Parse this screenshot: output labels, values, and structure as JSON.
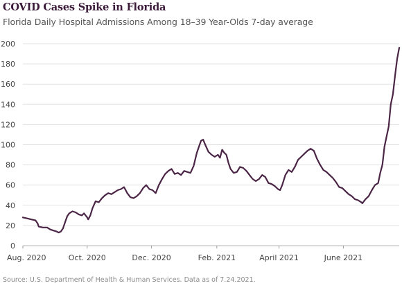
{
  "chart_data": {
    "type": "line",
    "title": "COVID Cases Spike in Florida",
    "subtitle": "Florida Daily Hospital Admissions Among 18–39 Year-Olds 7-day average",
    "source": "Source: U.S. Department of Health & Human Services. Data as of 7.24.2021.",
    "xlabel": "",
    "ylabel": "",
    "ylim": [
      0,
      200
    ],
    "yticks": [
      0,
      20,
      40,
      60,
      80,
      100,
      120,
      140,
      160,
      180,
      200
    ],
    "xlim": [
      "2020-08-01",
      "2021-07-24"
    ],
    "xticks": [
      {
        "date": "2020-08-01",
        "label": "Aug. 2020"
      },
      {
        "date": "2020-10-01",
        "label": "Oct. 2020"
      },
      {
        "date": "2020-12-01",
        "label": "Dec. 2020"
      },
      {
        "date": "2021-02-01",
        "label": "Feb. 2021"
      },
      {
        "date": "2021-04-01",
        "label": "April 2021"
      },
      {
        "date": "2021-06-01",
        "label": "June 2021"
      }
    ],
    "grid": "horizontal",
    "line_color": "#4a2545",
    "series": [
      {
        "name": "",
        "points": [
          [
            "2020-08-01",
            28
          ],
          [
            "2020-08-05",
            27
          ],
          [
            "2020-08-09",
            26
          ],
          [
            "2020-08-13",
            25
          ],
          [
            "2020-08-15",
            22
          ],
          [
            "2020-08-16",
            19
          ],
          [
            "2020-08-20",
            18
          ],
          [
            "2020-08-24",
            18
          ],
          [
            "2020-08-27",
            16
          ],
          [
            "2020-08-30",
            15
          ],
          [
            "2020-09-02",
            14
          ],
          [
            "2020-09-04",
            13
          ],
          [
            "2020-09-06",
            14
          ],
          [
            "2020-09-08",
            17
          ],
          [
            "2020-09-10",
            23
          ],
          [
            "2020-09-12",
            29
          ],
          [
            "2020-09-14",
            32
          ],
          [
            "2020-09-17",
            34
          ],
          [
            "2020-09-20",
            33
          ],
          [
            "2020-09-23",
            31
          ],
          [
            "2020-09-26",
            30
          ],
          [
            "2020-09-28",
            32
          ],
          [
            "2020-10-01",
            28
          ],
          [
            "2020-10-02",
            26
          ],
          [
            "2020-10-04",
            30
          ],
          [
            "2020-10-06",
            37
          ],
          [
            "2020-10-09",
            44
          ],
          [
            "2020-10-12",
            43
          ],
          [
            "2020-10-15",
            47
          ],
          [
            "2020-10-18",
            50
          ],
          [
            "2020-10-21",
            52
          ],
          [
            "2020-10-24",
            51
          ],
          [
            "2020-10-27",
            53
          ],
          [
            "2020-10-30",
            55
          ],
          [
            "2020-11-02",
            56
          ],
          [
            "2020-11-05",
            58
          ],
          [
            "2020-11-08",
            52
          ],
          [
            "2020-11-11",
            48
          ],
          [
            "2020-11-14",
            47
          ],
          [
            "2020-11-17",
            49
          ],
          [
            "2020-11-20",
            52
          ],
          [
            "2020-11-23",
            57
          ],
          [
            "2020-11-26",
            60
          ],
          [
            "2020-11-29",
            56
          ],
          [
            "2020-12-02",
            55
          ],
          [
            "2020-12-05",
            52
          ],
          [
            "2020-12-08",
            60
          ],
          [
            "2020-12-11",
            66
          ],
          [
            "2020-12-14",
            71
          ],
          [
            "2020-12-17",
            74
          ],
          [
            "2020-12-20",
            76
          ],
          [
            "2020-12-23",
            71
          ],
          [
            "2020-12-26",
            72
          ],
          [
            "2020-12-29",
            70
          ],
          [
            "2021-01-01",
            74
          ],
          [
            "2021-01-04",
            73
          ],
          [
            "2021-01-07",
            72
          ],
          [
            "2021-01-10",
            79
          ],
          [
            "2021-01-13",
            92
          ],
          [
            "2021-01-15",
            98
          ],
          [
            "2021-01-17",
            104
          ],
          [
            "2021-01-19",
            105
          ],
          [
            "2021-01-21",
            100
          ],
          [
            "2021-01-24",
            93
          ],
          [
            "2021-01-27",
            90
          ],
          [
            "2021-01-30",
            88
          ],
          [
            "2021-02-02",
            90
          ],
          [
            "2021-02-04",
            87
          ],
          [
            "2021-02-06",
            95
          ],
          [
            "2021-02-08",
            92
          ],
          [
            "2021-02-10",
            90
          ],
          [
            "2021-02-12",
            82
          ],
          [
            "2021-02-14",
            76
          ],
          [
            "2021-02-17",
            72
          ],
          [
            "2021-02-20",
            73
          ],
          [
            "2021-02-23",
            78
          ],
          [
            "2021-02-26",
            77
          ],
          [
            "2021-03-01",
            74
          ],
          [
            "2021-03-04",
            70
          ],
          [
            "2021-03-07",
            66
          ],
          [
            "2021-03-10",
            64
          ],
          [
            "2021-03-13",
            66
          ],
          [
            "2021-03-16",
            70
          ],
          [
            "2021-03-19",
            68
          ],
          [
            "2021-03-22",
            62
          ],
          [
            "2021-03-25",
            61
          ],
          [
            "2021-03-28",
            59
          ],
          [
            "2021-03-31",
            56
          ],
          [
            "2021-04-02",
            55
          ],
          [
            "2021-04-04",
            60
          ],
          [
            "2021-04-07",
            70
          ],
          [
            "2021-04-10",
            75
          ],
          [
            "2021-04-13",
            73
          ],
          [
            "2021-04-16",
            78
          ],
          [
            "2021-04-19",
            85
          ],
          [
            "2021-04-22",
            88
          ],
          [
            "2021-04-25",
            91
          ],
          [
            "2021-04-28",
            94
          ],
          [
            "2021-05-01",
            96
          ],
          [
            "2021-05-04",
            94
          ],
          [
            "2021-05-07",
            86
          ],
          [
            "2021-05-10",
            80
          ],
          [
            "2021-05-13",
            75
          ],
          [
            "2021-05-16",
            73
          ],
          [
            "2021-05-19",
            70
          ],
          [
            "2021-05-22",
            67
          ],
          [
            "2021-05-25",
            63
          ],
          [
            "2021-05-28",
            58
          ],
          [
            "2021-05-31",
            57
          ],
          [
            "2021-06-03",
            54
          ],
          [
            "2021-06-06",
            51
          ],
          [
            "2021-06-09",
            49
          ],
          [
            "2021-06-12",
            46
          ],
          [
            "2021-06-15",
            45
          ],
          [
            "2021-06-18",
            43
          ],
          [
            "2021-06-19",
            42
          ],
          [
            "2021-06-22",
            46
          ],
          [
            "2021-06-25",
            49
          ],
          [
            "2021-06-28",
            55
          ],
          [
            "2021-07-01",
            60
          ],
          [
            "2021-07-04",
            62
          ],
          [
            "2021-07-06",
            72
          ],
          [
            "2021-07-08",
            80
          ],
          [
            "2021-07-10",
            98
          ],
          [
            "2021-07-12",
            108
          ],
          [
            "2021-07-14",
            118
          ],
          [
            "2021-07-16",
            140
          ],
          [
            "2021-07-18",
            150
          ],
          [
            "2021-07-20",
            168
          ],
          [
            "2021-07-22",
            185
          ],
          [
            "2021-07-24",
            196
          ]
        ]
      }
    ]
  }
}
